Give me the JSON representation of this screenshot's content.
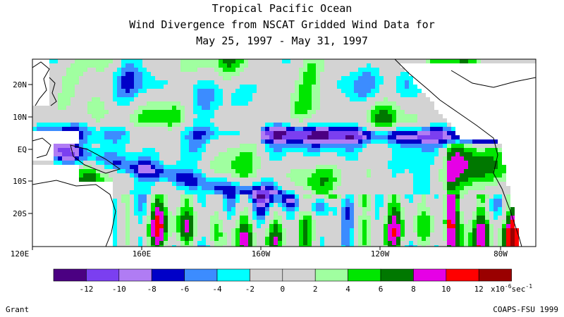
{
  "title": {
    "line1": "Tropical Pacific Ocean",
    "line2": "Wind Divergence from NSCAT Gridded Wind Data for",
    "line3": "May 25, 1997 - May 31, 1997"
  },
  "axes": {
    "lat_labels": [
      "20N",
      "10N",
      "EQ",
      "10S",
      "20S"
    ],
    "lon_labels": [
      "120E",
      "160E",
      "160W",
      "120W",
      "80W"
    ]
  },
  "colorbar": {
    "colors": [
      "#4b0082",
      "#7b3ff0",
      "#b07cf4",
      "#0000c8",
      "#3c8cff",
      "#00ffff",
      "#d3d3d3",
      "#d3d3d3",
      "#a0ffa0",
      "#00e600",
      "#007800",
      "#e600e6",
      "#ff0000",
      "#9a0000"
    ],
    "tick_labels": [
      "-12",
      "-10",
      "-8",
      "-6",
      "-4",
      "-2",
      "0",
      "2",
      "4",
      "6",
      "8",
      "10",
      "12"
    ],
    "unit_base": "x10",
    "unit_exp": "-6",
    "unit_tail": "sec",
    "unit_tail_exp": "-1"
  },
  "footer": {
    "left": "Grant",
    "right": "COAPS-FSU 1999"
  }
}
